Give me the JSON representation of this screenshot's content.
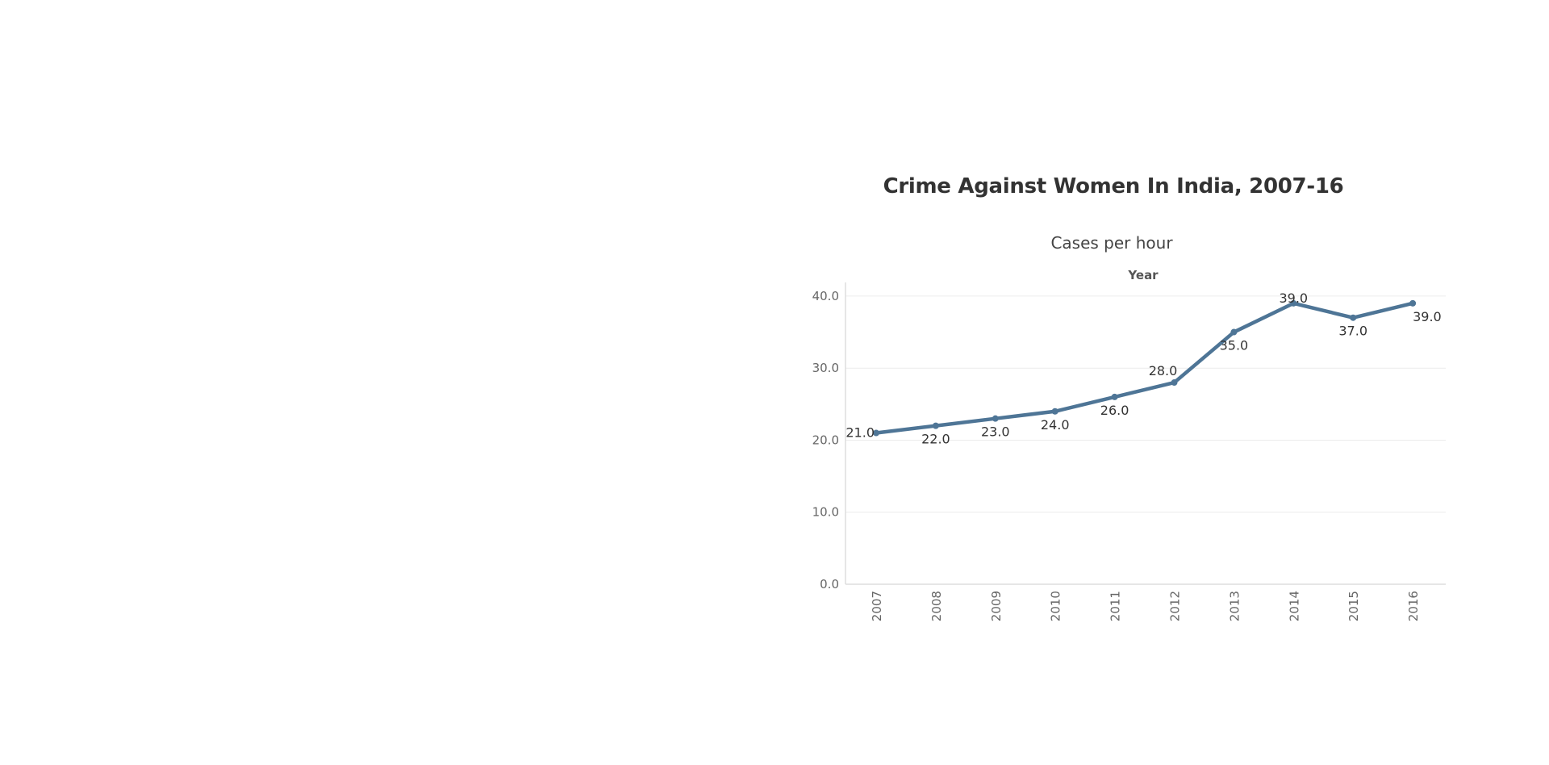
{
  "title": "Crime Against Women In India, 2007-16",
  "chart_data": {
    "type": "line",
    "title": "Crime Against Women In India, 2007-16",
    "subtitle": "Cases per hour",
    "header_label": "Year",
    "xlabel": "",
    "ylabel": "",
    "x": [
      "2007",
      "2008",
      "2009",
      "2010",
      "2011",
      "2012",
      "2013",
      "2014",
      "2015",
      "2016"
    ],
    "series": [
      {
        "values": [
          21.0,
          22.0,
          23.0,
          24.0,
          26.0,
          28.0,
          35.0,
          39.0,
          37.0,
          39.0
        ],
        "data_labels": [
          "21.0",
          "22.0",
          "23.0",
          "24.0",
          "26.0",
          "28.0",
          "35.0",
          "39.0",
          "37.0",
          "39.0"
        ]
      }
    ],
    "ylim": [
      0,
      41
    ],
    "yticks": [
      0,
      10,
      20,
      30,
      40
    ],
    "ytick_labels": [
      "0.0",
      "10.0",
      "20.0",
      "30.0",
      "40.0"
    ],
    "grid": true,
    "legend": "none",
    "colors": {
      "line": "#4e7596",
      "grid": "#ececec",
      "text": "#333333"
    }
  }
}
